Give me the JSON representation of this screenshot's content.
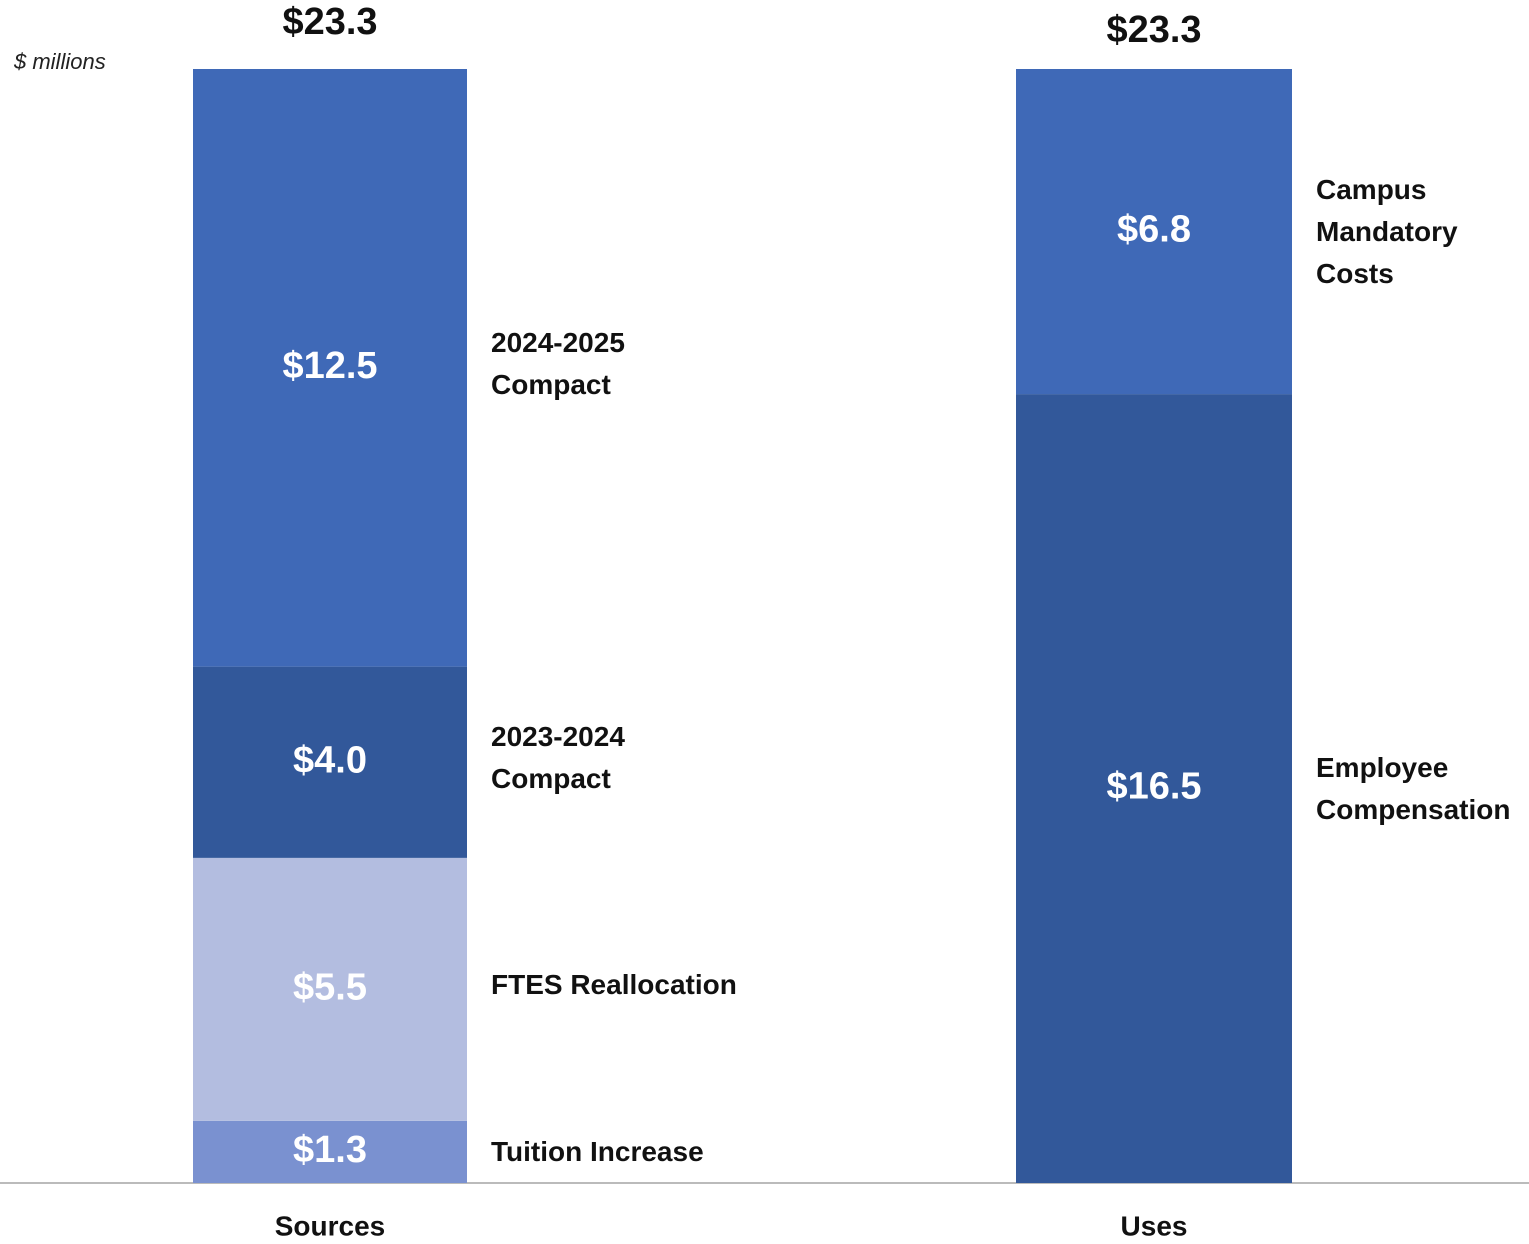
{
  "chart_data": {
    "type": "stacked_bar",
    "y_label": "$ millions",
    "categories": [
      "Sources",
      "Uses"
    ],
    "totals": [
      23.3,
      23.3
    ],
    "total_labels": [
      "$23.3",
      "$23.3"
    ],
    "ylim": [
      0,
      23.3
    ],
    "series": [
      {
        "name": "Tuition Increase",
        "color": "#7a91d0",
        "values": [
          1.3,
          null
        ],
        "value_labels": [
          "$1.3",
          null
        ]
      },
      {
        "name": "FTES Reallocation",
        "color": "#b3bde0",
        "values": [
          5.5,
          null
        ],
        "value_labels": [
          "$5.5",
          null
        ]
      },
      {
        "name": "2023-2024 Compact",
        "color": "#32589a",
        "values": [
          4.0,
          null
        ],
        "value_labels": [
          "$4.0",
          null
        ]
      },
      {
        "name": "2024-2025 Compact",
        "color": "#3f69b7",
        "values": [
          12.5,
          null
        ],
        "value_labels": [
          "$12.5",
          null
        ]
      },
      {
        "name": "Employee Compensation",
        "color": "#32589a",
        "values": [
          null,
          16.5
        ],
        "value_labels": [
          null,
          "$16.5"
        ]
      },
      {
        "name": "Campus Mandatory Costs",
        "color": "#3f69b7",
        "values": [
          null,
          6.8
        ],
        "value_labels": [
          null,
          "$6.8"
        ]
      }
    ]
  }
}
